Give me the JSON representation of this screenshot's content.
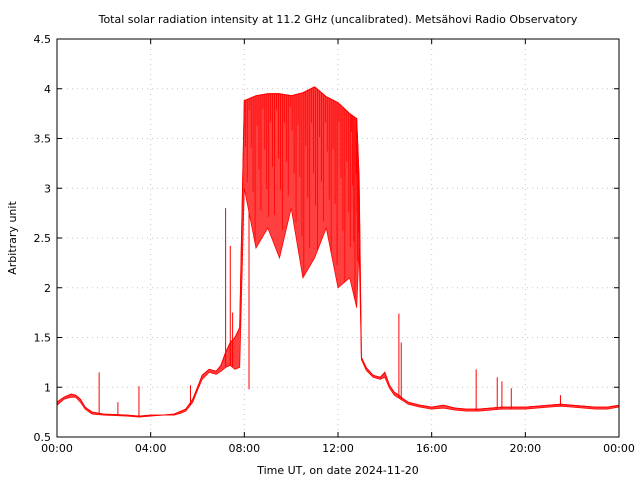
{
  "chart_data": {
    "type": "line",
    "title": "Total solar radiation intensity at 11.2 GHz (uncalibrated). Metsähovi Radio Observatory",
    "xlabel": "Time UT, on date 2024-11-20",
    "ylabel": "Arbitrary unit",
    "xlim": [
      0,
      24
    ],
    "ylim": [
      0.5,
      4.5
    ],
    "x_ticks": [
      0,
      4,
      8,
      12,
      16,
      20,
      24
    ],
    "x_tick_labels": [
      "00:00",
      "04:00",
      "08:00",
      "12:00",
      "16:00",
      "20:00",
      "00:00"
    ],
    "y_ticks": [
      0.5,
      1,
      1.5,
      2,
      2.5,
      3,
      3.5,
      4,
      4.5
    ],
    "y_tick_labels": [
      "0.5",
      "1",
      "1.5",
      "2",
      "2.5",
      "3",
      "3.5",
      "4",
      "4.5"
    ],
    "grid": true,
    "series_color": "#ff0000",
    "series": [
      {
        "x_hours": [
          0.0,
          0.3,
          0.6,
          0.8,
          1.0,
          1.2,
          1.5,
          2.0,
          3.0,
          3.5,
          4.0,
          4.5,
          5.0,
          5.3,
          5.5,
          5.8,
          6.0,
          6.2,
          6.5,
          6.8,
          7.0,
          7.2,
          7.4,
          7.6,
          7.8,
          8.0,
          8.5,
          9.0,
          9.5,
          10.0,
          10.5,
          11.0,
          11.5,
          12.0,
          12.5,
          12.8,
          12.9,
          13.0,
          13.2,
          13.5,
          13.8,
          14.0,
          14.2,
          14.4,
          14.6,
          14.8,
          15.0,
          15.5,
          16.0,
          16.5,
          17.0,
          17.5,
          18.0,
          18.5,
          19.0,
          19.5,
          20.0,
          20.5,
          21.0,
          21.5,
          22.0,
          22.5,
          23.0,
          23.5,
          24.0
        ],
        "y_env_high": [
          0.85,
          0.9,
          0.93,
          0.92,
          0.88,
          0.8,
          0.75,
          0.73,
          0.72,
          0.71,
          0.72,
          0.72,
          0.73,
          0.76,
          0.78,
          0.88,
          1.0,
          1.12,
          1.18,
          1.16,
          1.22,
          1.35,
          1.45,
          1.5,
          1.6,
          3.88,
          3.93,
          3.95,
          3.95,
          3.93,
          3.96,
          4.02,
          3.92,
          3.86,
          3.75,
          3.7,
          3.1,
          1.3,
          1.2,
          1.12,
          1.1,
          1.15,
          1.02,
          0.95,
          0.92,
          0.88,
          0.85,
          0.82,
          0.8,
          0.82,
          0.79,
          0.78,
          0.78,
          0.79,
          0.8,
          0.8,
          0.8,
          0.81,
          0.82,
          0.83,
          0.82,
          0.81,
          0.8,
          0.8,
          0.82
        ],
        "y_env_low": [
          0.82,
          0.88,
          0.9,
          0.9,
          0.85,
          0.78,
          0.73,
          0.72,
          0.71,
          0.7,
          0.71,
          0.72,
          0.72,
          0.74,
          0.76,
          0.85,
          0.97,
          1.08,
          1.15,
          1.13,
          1.16,
          1.2,
          1.22,
          1.18,
          1.2,
          3.0,
          2.4,
          2.6,
          2.3,
          2.8,
          2.1,
          2.3,
          2.6,
          2.0,
          2.1,
          1.8,
          2.4,
          1.28,
          1.17,
          1.1,
          1.08,
          1.1,
          0.99,
          0.92,
          0.89,
          0.86,
          0.83,
          0.8,
          0.78,
          0.79,
          0.77,
          0.76,
          0.76,
          0.77,
          0.78,
          0.78,
          0.78,
          0.79,
          0.8,
          0.81,
          0.8,
          0.79,
          0.78,
          0.78,
          0.8
        ],
        "spikes": [
          [
            1.8,
            1.15
          ],
          [
            2.6,
            0.85
          ],
          [
            3.5,
            1.01
          ],
          [
            5.7,
            1.02
          ],
          [
            7.2,
            2.8
          ],
          [
            7.4,
            2.42
          ],
          [
            7.5,
            1.75
          ],
          [
            8.2,
            0.98
          ],
          [
            14.6,
            1.74
          ],
          [
            14.7,
            1.45
          ],
          [
            17.9,
            1.18
          ],
          [
            18.8,
            1.1
          ],
          [
            19.0,
            1.06
          ],
          [
            19.4,
            0.99
          ],
          [
            21.5,
            0.92
          ]
        ]
      }
    ]
  }
}
